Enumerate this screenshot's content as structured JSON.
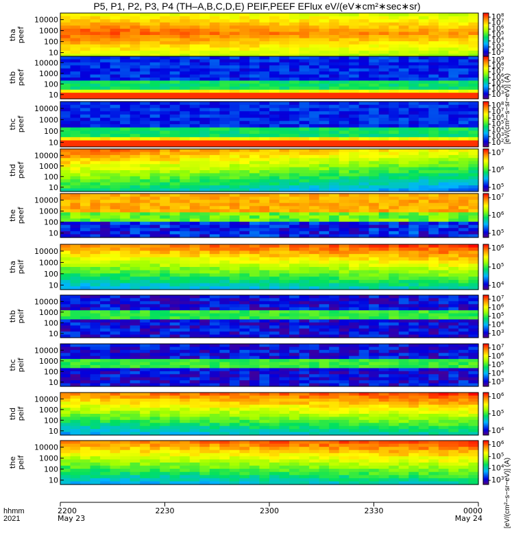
{
  "title": "P5, P1, P2, P3, P4 (TH–A,B,C,D,E) PEIF,PEEF EFlux eV/(eV∗cm²∗sec∗sr)",
  "colorbar_label_top": "[eV/(cm²−s−sr−eV)] (A)",
  "colorbar_label_bottom": "[eV/(cm²−s−sr−eV)] (A)",
  "time_row": {
    "prefix_top": "hhmm",
    "prefix_bottom": "2021"
  },
  "colors": {
    "red_band": "#ff0000",
    "white_band": "#ffffff",
    "yellow_band": "#ffff00",
    "frame": "#000000"
  },
  "chart_data": {
    "type": "heatmap",
    "x_axis": {
      "range": [
        "2021-05-23 22:00",
        "2021-05-24 00:00"
      ],
      "ticks": [
        {
          "label": "2200",
          "date": "May 23"
        },
        {
          "label": "2230",
          "date": ""
        },
        {
          "label": "2300",
          "date": ""
        },
        {
          "label": "2330",
          "date": ""
        },
        {
          "label": "0000",
          "date": "May 24"
        }
      ]
    },
    "y_axis": {
      "scale": "log",
      "units": "eV",
      "ticks": [
        "10",
        "100",
        "1000",
        "10000"
      ]
    },
    "panels": [
      {
        "ylabel": [
          "tha",
          "peef"
        ],
        "cbar_ticks": [
          [
            "10",
            "8"
          ],
          [
            "10",
            "7"
          ],
          [
            "10",
            "6"
          ],
          [
            "10",
            "5"
          ],
          [
            "10",
            "4"
          ],
          [
            "10",
            "3"
          ],
          [
            "10",
            "2"
          ]
        ],
        "pattern": "peef_hot"
      },
      {
        "ylabel": [
          "thb",
          "peef"
        ],
        "cbar_ticks": [
          [
            "10",
            "9"
          ],
          [
            "10",
            "8"
          ],
          [
            "10",
            "7"
          ],
          [
            "10",
            "6"
          ],
          [
            "10",
            "5"
          ],
          [
            "10",
            "4"
          ],
          [
            "10",
            "3"
          ]
        ],
        "pattern": "peef_cold"
      },
      {
        "ylabel": [
          "thc",
          "peef"
        ],
        "cbar_ticks": [
          [
            "10",
            "8"
          ],
          [
            "10",
            "7"
          ],
          [
            "10",
            "6"
          ],
          [
            "10",
            "5"
          ],
          [
            "10",
            "4"
          ],
          [
            "10",
            "3"
          ],
          [
            "10",
            "2"
          ]
        ],
        "pattern": "peef_cold"
      },
      {
        "ylabel": [
          "thd",
          "peef"
        ],
        "cbar_ticks": [
          [
            "10",
            "7"
          ],
          [
            "10",
            "6"
          ],
          [
            "10",
            "5"
          ]
        ],
        "pattern": "peef_warm"
      },
      {
        "ylabel": [
          "the",
          "peef"
        ],
        "cbar_ticks": [
          [
            "10",
            "7"
          ],
          [
            "10",
            "6"
          ],
          [
            "10",
            "5"
          ]
        ],
        "pattern": "peef_mixed"
      },
      {
        "ylabel": [
          "tha",
          "peif"
        ],
        "cbar_ticks": [
          [
            "10",
            "6"
          ],
          [
            "10",
            "5"
          ],
          [
            "10",
            "4"
          ]
        ],
        "pattern": "peif_warm"
      },
      {
        "ylabel": [
          "thb",
          "peif"
        ],
        "cbar_ticks": [
          [
            "10",
            "7"
          ],
          [
            "10",
            "6"
          ],
          [
            "10",
            "5"
          ],
          [
            "10",
            "4"
          ],
          [
            "10",
            "3"
          ]
        ],
        "pattern": "peif_cold"
      },
      {
        "ylabel": [
          "thc",
          "peif"
        ],
        "cbar_ticks": [
          [
            "10",
            "7"
          ],
          [
            "10",
            "6"
          ],
          [
            "10",
            "5"
          ],
          [
            "10",
            "4"
          ],
          [
            "10",
            "3"
          ]
        ],
        "pattern": "peif_cold"
      },
      {
        "ylabel": [
          "thd",
          "peif"
        ],
        "cbar_ticks": [
          [
            "10",
            "6"
          ],
          [
            "10",
            "5"
          ],
          [
            "10",
            "4"
          ]
        ],
        "pattern": "peif_warm"
      },
      {
        "ylabel": [
          "the",
          "peif"
        ],
        "cbar_ticks": [
          [
            "10",
            "6"
          ],
          [
            "10",
            "5"
          ],
          [
            "10",
            "4"
          ],
          [
            "10",
            "3"
          ]
        ],
        "pattern": "peif_warm"
      }
    ]
  }
}
